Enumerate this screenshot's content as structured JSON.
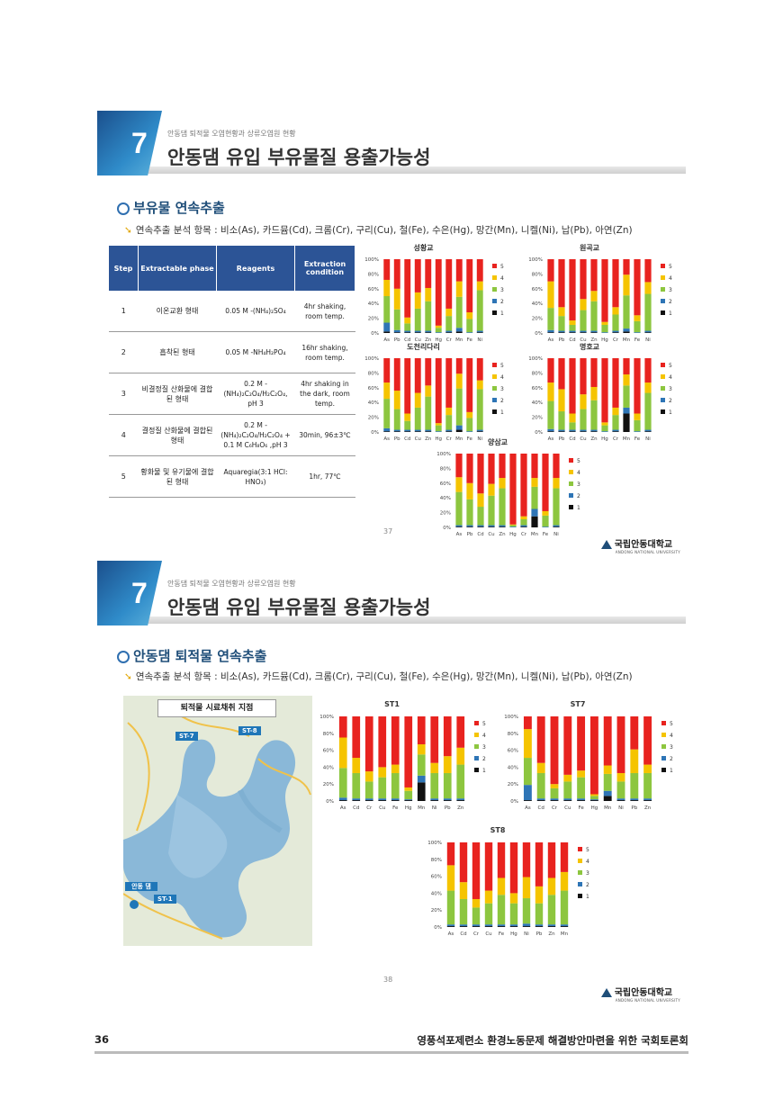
{
  "slides": [
    {
      "badge": "7",
      "subtitle": "안동댐 퇴적물 오염현황과 상류오염원 현황",
      "title": "안동댐 유입 부유물질 용출가능성",
      "section": "부유물 연속추출",
      "items": "연속추출 분석 항목 : 비소(As), 카드뮴(Cd), 크롬(Cr), 구리(Cu), 철(Fe), 수은(Hg), 망간(Mn), 니켈(Ni), 납(Pb), 아연(Zn)",
      "page": "37"
    },
    {
      "badge": "7",
      "subtitle": "안동댐 퇴적물 오염현황과 상류오염원 현황",
      "title": "안동댐 유입 부유물질 용출가능성",
      "section": "안동댐 퇴적물 연속추출",
      "items": "연속추출 분석 항목 : 비소(As), 카드뮴(Cd), 크롬(Cr), 구리(Cu), 철(Fe), 수은(Hg), 망간(Mn), 니켈(Ni), 납(Pb), 아연(Zn)",
      "page": "38"
    }
  ],
  "logo": {
    "name": "국립안동대학교",
    "en": "ANDONG NATIONAL UNIVERSITY"
  },
  "table": {
    "headers": [
      "Step",
      "Extractable phase",
      "Reagents",
      "Extraction condition"
    ],
    "rows": [
      [
        "1",
        "이온교환 형태",
        "0.05 M -(NH₄)₂SO₄",
        "4hr shaking, room temp."
      ],
      [
        "2",
        "흡착된 형태",
        "0.05 M -NH₄H₂PO₄",
        "16hr shaking, room temp."
      ],
      [
        "3",
        "비결정질 산화물에 결합된 형태",
        "0.2 M -(NH₄)₂C₂O₄/H₂C₂O₄, pH 3",
        "4hr shaking in the dark, room temp."
      ],
      [
        "4",
        "결정질 산화물에 결합된 형태",
        "0.2 M -(NH₄)₂C₂O₄/H₂C₂O₄ + 0.1 M C₆H₈O₆ ,pH 3",
        "30min, 96±3℃"
      ],
      [
        "5",
        "황화물 및 유기물에 결합된 형태",
        "Aquaregia(3:1 HCl: HNO₃)",
        "1hr, 77℃"
      ]
    ]
  },
  "map": {
    "label": "퇴적물 시료채취 지점",
    "tags": [
      "ST-7",
      "ST-8",
      "안동 댐",
      "ST-1"
    ]
  },
  "colors": {
    "s5": "#e8231f",
    "s4": "#f5c400",
    "s3": "#8dc63f",
    "s2": "#2e75b6",
    "s1": "#111111"
  },
  "chart_data": [
    {
      "type": "bar",
      "stacked": true,
      "title": "성황교",
      "categories": [
        "As",
        "Pb",
        "Cd",
        "Cu",
        "Zn",
        "Hg",
        "Cr",
        "Mn",
        "Fe",
        "Ni"
      ],
      "yticks": [
        "0%",
        "20%",
        "40%",
        "60%",
        "80%",
        "100%"
      ],
      "ylim": [
        0,
        100
      ],
      "legend": [
        "5",
        "4",
        "3",
        "2",
        "1"
      ],
      "series": [
        {
          "name": "1",
          "values": [
            2,
            1,
            1,
            1,
            1,
            0,
            1,
            2,
            0,
            1
          ]
        },
        {
          "name": "2",
          "values": [
            12,
            3,
            2,
            2,
            2,
            1,
            2,
            5,
            1,
            2
          ]
        },
        {
          "name": "3",
          "values": [
            36,
            28,
            10,
            30,
            40,
            6,
            20,
            42,
            18,
            55
          ]
        },
        {
          "name": "4",
          "values": [
            22,
            28,
            8,
            22,
            18,
            3,
            10,
            21,
            9,
            12
          ]
        },
        {
          "name": "5",
          "values": [
            28,
            40,
            79,
            45,
            39,
            90,
            67,
            30,
            72,
            30
          ]
        }
      ]
    },
    {
      "type": "bar",
      "stacked": true,
      "title": "원곡교",
      "categories": [
        "As",
        "Pb",
        "Cd",
        "Cu",
        "Zn",
        "Hg",
        "Cr",
        "Mn",
        "Fe",
        "Ni"
      ],
      "yticks": [
        "0%",
        "20%",
        "40%",
        "60%",
        "80%",
        "100%"
      ],
      "ylim": [
        0,
        100
      ],
      "legend": [
        "5",
        "4",
        "3",
        "2",
        "1"
      ],
      "series": [
        {
          "name": "1",
          "values": [
            1,
            1,
            1,
            1,
            1,
            0,
            1,
            2,
            0,
            1
          ]
        },
        {
          "name": "2",
          "values": [
            3,
            2,
            2,
            2,
            2,
            1,
            2,
            4,
            1,
            2
          ]
        },
        {
          "name": "3",
          "values": [
            30,
            20,
            8,
            28,
            40,
            10,
            22,
            45,
            15,
            50
          ]
        },
        {
          "name": "4",
          "values": [
            36,
            12,
            6,
            15,
            14,
            4,
            10,
            28,
            8,
            16
          ]
        },
        {
          "name": "5",
          "values": [
            30,
            65,
            83,
            54,
            43,
            85,
            65,
            21,
            76,
            31
          ]
        }
      ]
    },
    {
      "type": "bar",
      "stacked": true,
      "title": "도천리다리",
      "categories": [
        "As",
        "Pb",
        "Cd",
        "Cu",
        "Zn",
        "Hg",
        "Cr",
        "Mn",
        "Fe",
        "Ni"
      ],
      "yticks": [
        "0%",
        "20%",
        "40%",
        "60%",
        "80%",
        "100%"
      ],
      "ylim": [
        0,
        100
      ],
      "legend": [
        "5",
        "4",
        "3",
        "2",
        "1"
      ],
      "series": [
        {
          "name": "1",
          "values": [
            1,
            1,
            1,
            1,
            1,
            0,
            1,
            3,
            0,
            1
          ]
        },
        {
          "name": "2",
          "values": [
            4,
            2,
            2,
            2,
            2,
            1,
            2,
            6,
            1,
            2
          ]
        },
        {
          "name": "3",
          "values": [
            40,
            28,
            12,
            30,
            45,
            8,
            20,
            50,
            18,
            55
          ]
        },
        {
          "name": "4",
          "values": [
            22,
            25,
            10,
            20,
            15,
            3,
            10,
            20,
            8,
            12
          ]
        },
        {
          "name": "5",
          "values": [
            33,
            44,
            75,
            47,
            37,
            88,
            67,
            21,
            73,
            30
          ]
        }
      ]
    },
    {
      "type": "bar",
      "stacked": true,
      "title": "명호교",
      "categories": [
        "As",
        "Pb",
        "Cd",
        "Cu",
        "Zn",
        "Hg",
        "Cr",
        "Mn",
        "Fe",
        "Ni"
      ],
      "yticks": [
        "0%",
        "20%",
        "40%",
        "60%",
        "80%",
        "100%"
      ],
      "ylim": [
        0,
        100
      ],
      "legend": [
        "5",
        "4",
        "3",
        "2",
        "1"
      ],
      "series": [
        {
          "name": "1",
          "values": [
            1,
            1,
            1,
            1,
            1,
            0,
            1,
            25,
            0,
            1
          ]
        },
        {
          "name": "2",
          "values": [
            3,
            2,
            2,
            2,
            2,
            1,
            2,
            8,
            1,
            2
          ]
        },
        {
          "name": "3",
          "values": [
            38,
            25,
            10,
            28,
            40,
            8,
            20,
            30,
            15,
            50
          ]
        },
        {
          "name": "4",
          "values": [
            25,
            30,
            12,
            20,
            18,
            4,
            10,
            15,
            9,
            14
          ]
        },
        {
          "name": "5",
          "values": [
            33,
            42,
            75,
            49,
            39,
            87,
            67,
            22,
            75,
            33
          ]
        }
      ]
    },
    {
      "type": "bar",
      "stacked": true,
      "title": "양삼교",
      "categories": [
        "As",
        "Pb",
        "Cd",
        "Cu",
        "Zn",
        "Hg",
        "Cr",
        "Mn",
        "Fe",
        "Ni"
      ],
      "yticks": [
        "0%",
        "20%",
        "40%",
        "60%",
        "80%",
        "100%"
      ],
      "ylim": [
        0,
        100
      ],
      "legend": [
        "5",
        "4",
        "3",
        "2",
        "1"
      ],
      "series": [
        {
          "name": "1",
          "values": [
            1,
            1,
            1,
            1,
            1,
            0,
            1,
            15,
            0,
            1
          ]
        },
        {
          "name": "2",
          "values": [
            2,
            2,
            2,
            2,
            2,
            1,
            2,
            10,
            1,
            2
          ]
        },
        {
          "name": "3",
          "values": [
            45,
            35,
            25,
            40,
            50,
            2,
            8,
            30,
            15,
            50
          ]
        },
        {
          "name": "4",
          "values": [
            20,
            22,
            18,
            16,
            14,
            1,
            4,
            12,
            6,
            14
          ]
        },
        {
          "name": "5",
          "values": [
            32,
            40,
            54,
            41,
            33,
            96,
            85,
            33,
            78,
            33
          ]
        }
      ]
    },
    {
      "type": "bar",
      "stacked": true,
      "title": "ST1",
      "categories": [
        "As",
        "Cd",
        "Cr",
        "Cu",
        "Fe",
        "Hg",
        "Mn",
        "Ni",
        "Pb",
        "Zn"
      ],
      "yticks": [
        "0%",
        "20%",
        "40%",
        "60%",
        "80%",
        "100%"
      ],
      "ylim": [
        0,
        100
      ],
      "legend": [
        "5",
        "4",
        "3",
        "2",
        "1"
      ],
      "series": [
        {
          "name": "1",
          "values": [
            1,
            1,
            1,
            1,
            1,
            1,
            22,
            1,
            1,
            1
          ]
        },
        {
          "name": "2",
          "values": [
            3,
            2,
            2,
            2,
            2,
            1,
            8,
            2,
            2,
            2
          ]
        },
        {
          "name": "3",
          "values": [
            35,
            30,
            20,
            25,
            30,
            10,
            25,
            30,
            30,
            40
          ]
        },
        {
          "name": "4",
          "values": [
            36,
            18,
            12,
            12,
            10,
            4,
            12,
            12,
            20,
            20
          ]
        },
        {
          "name": "5",
          "values": [
            25,
            49,
            65,
            60,
            57,
            84,
            33,
            55,
            47,
            37
          ]
        }
      ]
    },
    {
      "type": "bar",
      "stacked": true,
      "title": "ST7",
      "categories": [
        "As",
        "Cd",
        "Cr",
        "Cu",
        "Fe",
        "Hg",
        "Mn",
        "Ni",
        "Pb",
        "Zn"
      ],
      "yticks": [
        "0%",
        "20%",
        "40%",
        "60%",
        "80%",
        "100%"
      ],
      "ylim": [
        0,
        100
      ],
      "legend": [
        "5",
        "4",
        "3",
        "2",
        "1"
      ],
      "series": [
        {
          "name": "1",
          "values": [
            1,
            1,
            1,
            1,
            1,
            1,
            6,
            1,
            1,
            1
          ]
        },
        {
          "name": "2",
          "values": [
            18,
            2,
            2,
            2,
            2,
            1,
            6,
            2,
            2,
            2
          ]
        },
        {
          "name": "3",
          "values": [
            32,
            30,
            12,
            20,
            25,
            4,
            20,
            20,
            30,
            30
          ]
        },
        {
          "name": "4",
          "values": [
            34,
            12,
            5,
            8,
            8,
            2,
            10,
            10,
            28,
            10
          ]
        },
        {
          "name": "5",
          "values": [
            15,
            55,
            80,
            69,
            64,
            92,
            58,
            67,
            39,
            57
          ]
        }
      ]
    },
    {
      "type": "bar",
      "stacked": true,
      "title": "ST8",
      "categories": [
        "As",
        "Cd",
        "Cr",
        "Cu",
        "Fe",
        "Hg",
        "Ni",
        "Pb",
        "Zn",
        "Mn"
      ],
      "yticks": [
        "0%",
        "20%",
        "40%",
        "60%",
        "80%",
        "100%"
      ],
      "ylim": [
        0,
        100
      ],
      "legend": [
        "5",
        "4",
        "3",
        "2",
        "1"
      ],
      "series": [
        {
          "name": "1",
          "values": [
            1,
            1,
            1,
            1,
            1,
            1,
            1,
            1,
            1,
            1
          ]
        },
        {
          "name": "2",
          "values": [
            2,
            2,
            2,
            2,
            2,
            2,
            3,
            2,
            2,
            2
          ]
        },
        {
          "name": "3",
          "values": [
            40,
            30,
            20,
            25,
            35,
            25,
            30,
            25,
            35,
            40
          ]
        },
        {
          "name": "4",
          "values": [
            30,
            20,
            10,
            15,
            20,
            12,
            25,
            20,
            20,
            22
          ]
        },
        {
          "name": "5",
          "values": [
            27,
            47,
            67,
            57,
            42,
            60,
            41,
            52,
            42,
            35
          ]
        }
      ]
    }
  ],
  "footer": {
    "page": "36",
    "text": "영풍석포제련소 환경노동문제 해결방안마련을 위한 국회토론회"
  }
}
